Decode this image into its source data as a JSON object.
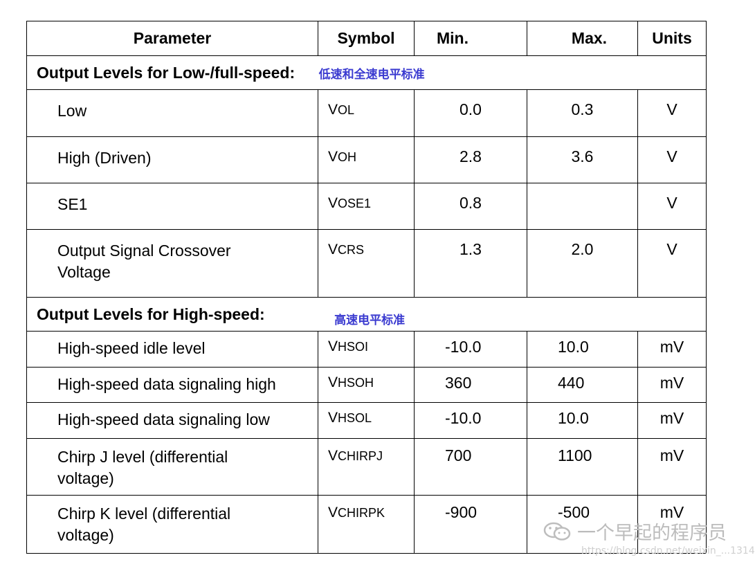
{
  "header": {
    "parameter": "Parameter",
    "symbol": "Symbol",
    "min": "Min.",
    "max": "Max.",
    "units": "Units"
  },
  "section_low_full": {
    "title": "Output Levels for Low-/full-speed:",
    "note": "低速和全速电平标准",
    "rows": [
      {
        "parameter": "Low",
        "symbol_v": "V",
        "symbol_sub": "OL",
        "min": "0.0",
        "max": "0.3",
        "unit": "V"
      },
      {
        "parameter": "High (Driven)",
        "symbol_v": "V",
        "symbol_sub": "OH",
        "min": "2.8",
        "max": "3.6",
        "unit": "V"
      },
      {
        "parameter": "SE1",
        "symbol_v": "V",
        "symbol_sub": "OSE1",
        "min": "0.8",
        "max": "",
        "unit": "V"
      },
      {
        "parameter_line1": "Output Signal Crossover",
        "parameter_line2": "Voltage",
        "symbol_v": "V",
        "symbol_sub": "CRS",
        "min": "1.3",
        "max": "2.0",
        "unit": "V"
      }
    ]
  },
  "section_high": {
    "title": "Output Levels for High-speed:",
    "note": "高速电平标准",
    "rows": [
      {
        "parameter": "High-speed idle level",
        "symbol_v": "V",
        "symbol_sub": "HSOI",
        "min": "-10.0",
        "max": "10.0",
        "unit": "mV"
      },
      {
        "parameter": "High-speed data signaling high",
        "symbol_v": "V",
        "symbol_sub": "HSOH",
        "min": "360",
        "max": "440",
        "unit": "mV"
      },
      {
        "parameter": "High-speed data signaling low",
        "symbol_v": "V",
        "symbol_sub": "HSOL",
        "min": "-10.0",
        "max": "10.0",
        "unit": "mV"
      },
      {
        "parameter_line1": "Chirp J level (differential",
        "parameter_line2": "voltage)",
        "symbol_v": "V",
        "symbol_sub": "CHIRPJ",
        "min": "700",
        "max": "1100",
        "unit": "mV"
      },
      {
        "parameter_line1": "Chirp K level (differential",
        "parameter_line2": "voltage)",
        "symbol_v": "V",
        "symbol_sub": "CHIRPK",
        "min": "-900",
        "max": "-500",
        "unit": "mV"
      }
    ]
  },
  "watermark": {
    "icon": "wechat-icon",
    "text": "一个早起的程序员",
    "url": "https://blog.csdn.net/weixin_...1314"
  }
}
